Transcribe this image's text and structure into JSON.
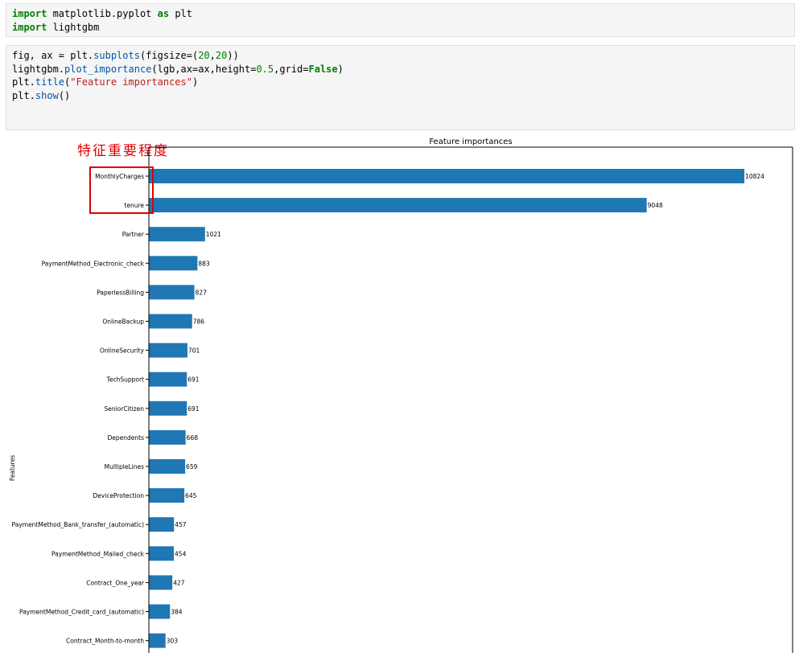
{
  "cells": [
    {
      "lines": [
        [
          {
            "t": "import",
            "c": "kw"
          },
          {
            "t": " matplotlib.pyplot ",
            "c": ""
          },
          {
            "t": "as",
            "c": "kw"
          },
          {
            "t": " plt",
            "c": ""
          }
        ],
        [
          {
            "t": "import",
            "c": "kw"
          },
          {
            "t": " lightgbm",
            "c": ""
          }
        ]
      ]
    },
    {
      "lines": [
        [
          {
            "t": "fig, ax = plt.",
            "c": ""
          },
          {
            "t": "subplots",
            "c": "fn"
          },
          {
            "t": "(figsize=(",
            "c": ""
          },
          {
            "t": "20",
            "c": "num"
          },
          {
            "t": ",",
            "c": ""
          },
          {
            "t": "20",
            "c": "num"
          },
          {
            "t": "))",
            "c": ""
          }
        ],
        [
          {
            "t": "lightgbm.",
            "c": ""
          },
          {
            "t": "plot_importance",
            "c": "fn"
          },
          {
            "t": "(lgb,ax=ax,height=",
            "c": ""
          },
          {
            "t": "0.5",
            "c": "num"
          },
          {
            "t": ",grid=",
            "c": ""
          },
          {
            "t": "False",
            "c": "kw"
          },
          {
            "t": ")",
            "c": ""
          }
        ],
        [
          {
            "t": "plt.",
            "c": ""
          },
          {
            "t": "title",
            "c": "fn"
          },
          {
            "t": "(",
            "c": ""
          },
          {
            "t": "\"Feature importances\"",
            "c": "str"
          },
          {
            "t": ")",
            "c": ""
          }
        ],
        [
          {
            "t": "plt.",
            "c": ""
          },
          {
            "t": "show",
            "c": "fn"
          },
          {
            "t": "()",
            "c": ""
          }
        ]
      ]
    }
  ],
  "annotation": {
    "text": "特征重要程度",
    "color": "#e00000"
  },
  "chart_data": {
    "type": "bar",
    "orientation": "horizontal",
    "title": "Feature importances",
    "xlabel": "",
    "ylabel": "Features",
    "categories": [
      "MonthlyCharges",
      "tenure",
      "Partner",
      "PaymentMethod_Electronic_check",
      "PaperlessBilling",
      "OnlineBackup",
      "OnlineSecurity",
      "TechSupport",
      "SeniorCitizen",
      "Dependents",
      "MultipleLines",
      "DeviceProtection",
      "PaymentMethod_Bank_transfer_(automatic)",
      "PaymentMethod_Mailed_check",
      "Contract_One_year",
      "PaymentMethod_Credit_card_(automatic)",
      "Contract_Month-to-month"
    ],
    "values": [
      10824,
      9048,
      1021,
      883,
      827,
      786,
      701,
      691,
      691,
      668,
      659,
      645,
      457,
      454,
      427,
      384,
      303
    ],
    "xlim": [
      0,
      11700
    ],
    "grid": false,
    "bar_color": "#1f77b4",
    "highlight_color": "#e00000"
  }
}
